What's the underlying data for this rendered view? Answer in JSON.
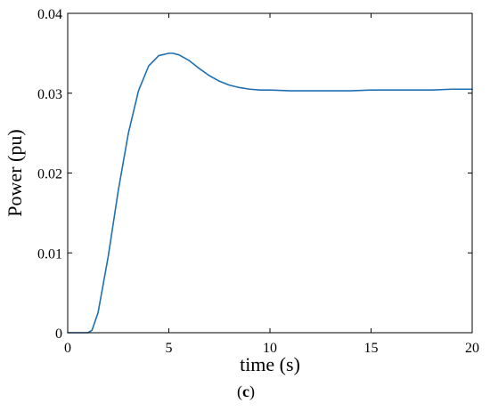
{
  "chart_data": {
    "type": "line",
    "title": "",
    "xlabel": "time (s)",
    "ylabel": "Power (pu)",
    "xlim": [
      0,
      20
    ],
    "ylim": [
      0,
      0.04
    ],
    "xticks": [
      0,
      5,
      10,
      15,
      20
    ],
    "yticks": [
      0,
      0.01,
      0.02,
      0.03,
      0.04
    ],
    "xtick_labels": [
      "0",
      "5",
      "10",
      "15",
      "20"
    ],
    "ytick_labels": [
      "0",
      "0.01",
      "0.02",
      "0.03",
      "0.04"
    ],
    "grid": false,
    "series": [
      {
        "color": "#1f6fb3",
        "x": [
          0,
          1.0,
          1.2,
          1.5,
          2.0,
          2.5,
          3.0,
          3.5,
          4.0,
          4.5,
          5.0,
          5.2,
          5.5,
          6.0,
          6.5,
          7.0,
          7.5,
          8.0,
          8.5,
          9.0,
          9.5,
          10.0,
          11.0,
          12.0,
          13.0,
          14.0,
          15.0,
          16.0,
          17.0,
          18.0,
          19.0,
          20.0
        ],
        "values": [
          0,
          0,
          0.0003,
          0.0025,
          0.0095,
          0.0178,
          0.025,
          0.0303,
          0.0334,
          0.0347,
          0.035,
          0.035,
          0.0348,
          0.0341,
          0.0331,
          0.0322,
          0.0315,
          0.031,
          0.0307,
          0.0305,
          0.0304,
          0.0304,
          0.0303,
          0.0303,
          0.0303,
          0.0303,
          0.0304,
          0.0304,
          0.0304,
          0.0304,
          0.0305,
          0.0305
        ]
      }
    ]
  },
  "caption": {
    "open": "(",
    "letter": "c",
    "close": ")"
  }
}
